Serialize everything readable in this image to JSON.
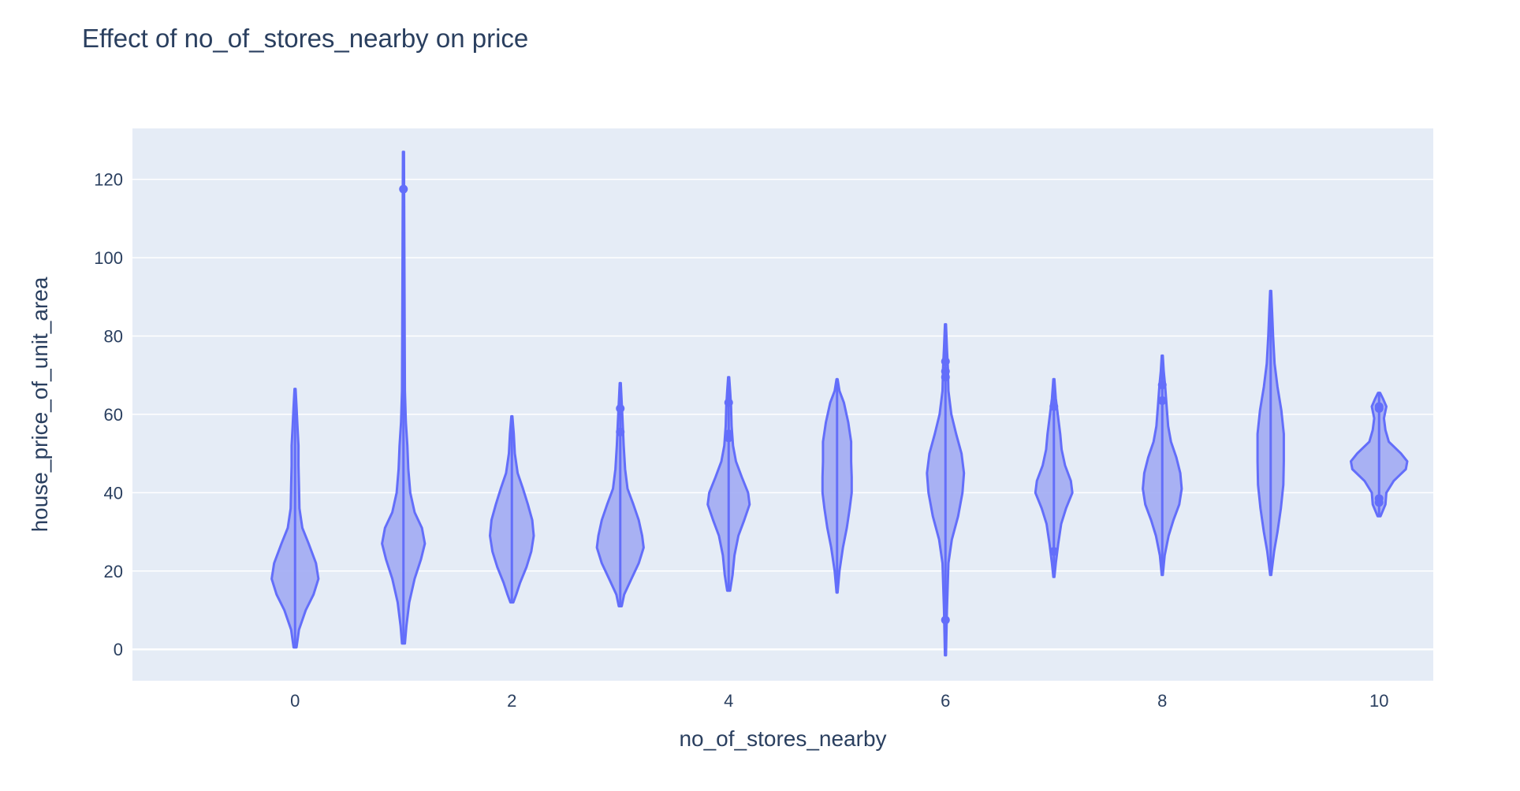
{
  "chart_data": {
    "type": "violin",
    "title": "Effect of no_of_stores_nearby on price",
    "xlabel": "no_of_stores_nearby",
    "ylabel": "house_price_of_unit_area",
    "xlim": [
      -1.5,
      10.5
    ],
    "ylim": [
      -8,
      133
    ],
    "x_ticks": [
      0,
      2,
      4,
      6,
      8,
      10
    ],
    "y_ticks": [
      0,
      20,
      40,
      60,
      80,
      100,
      120
    ],
    "grid": true,
    "colors": {
      "fill": "#a1abf3",
      "line": "#636efa",
      "plot_bg": "#e5ecf6",
      "grid": "#ffffff",
      "text": "#2a3f5f"
    },
    "series": [
      {
        "x": 0,
        "min": 0.5,
        "max": 66.5,
        "outliers": [],
        "profile": [
          [
            0.5,
            0.3
          ],
          [
            5,
            0.8
          ],
          [
            10,
            2.2
          ],
          [
            14,
            3.8
          ],
          [
            18,
            4.8
          ],
          [
            22,
            4.3
          ],
          [
            27,
            2.8
          ],
          [
            31,
            1.5
          ],
          [
            36,
            0.9
          ],
          [
            42,
            0.8
          ],
          [
            47,
            0.7
          ],
          [
            52,
            0.7
          ],
          [
            57,
            0.5
          ],
          [
            62,
            0.3
          ],
          [
            66.5,
            0.1
          ]
        ]
      },
      {
        "x": 1,
        "min": 1.5,
        "max": 127,
        "outliers": [
          117.5
        ],
        "profile": [
          [
            1.5,
            0.3
          ],
          [
            6,
            0.6
          ],
          [
            12,
            1.2
          ],
          [
            18,
            2.3
          ],
          [
            23,
            3.6
          ],
          [
            27,
            4.4
          ],
          [
            31,
            3.8
          ],
          [
            35,
            2.3
          ],
          [
            40,
            1.4
          ],
          [
            46,
            1.0
          ],
          [
            52,
            0.8
          ],
          [
            58,
            0.5
          ],
          [
            66,
            0.3
          ],
          [
            80,
            0.25
          ],
          [
            127,
            0.1
          ]
        ]
      },
      {
        "x": 2,
        "min": 12,
        "max": 59.5,
        "outliers": [],
        "profile": [
          [
            12,
            0.3
          ],
          [
            14,
            0.9
          ],
          [
            17,
            1.7
          ],
          [
            21,
            3.0
          ],
          [
            25,
            4.0
          ],
          [
            29,
            4.5
          ],
          [
            33,
            4.2
          ],
          [
            37,
            3.3
          ],
          [
            41,
            2.3
          ],
          [
            45,
            1.2
          ],
          [
            50,
            0.6
          ],
          [
            55,
            0.4
          ],
          [
            59.5,
            0.1
          ]
        ]
      },
      {
        "x": 3,
        "min": 11,
        "max": 68,
        "outliers": [
          61.5,
          55.5
        ],
        "profile": [
          [
            11,
            0.3
          ],
          [
            14,
            0.8
          ],
          [
            18,
            2.3
          ],
          [
            22,
            3.8
          ],
          [
            26,
            4.8
          ],
          [
            29,
            4.5
          ],
          [
            33,
            3.8
          ],
          [
            37,
            2.7
          ],
          [
            41,
            1.5
          ],
          [
            46,
            1.0
          ],
          [
            52,
            0.7
          ],
          [
            58,
            0.5
          ],
          [
            63,
            0.3
          ],
          [
            68,
            0.1
          ]
        ]
      },
      {
        "x": 4,
        "min": 15,
        "max": 69.5,
        "outliers": [
          63,
          55,
          54
        ],
        "profile": [
          [
            15,
            0.3
          ],
          [
            19,
            0.8
          ],
          [
            24,
            1.2
          ],
          [
            29,
            2.0
          ],
          [
            33,
            3.2
          ],
          [
            37,
            4.3
          ],
          [
            40,
            4.0
          ],
          [
            44,
            2.7
          ],
          [
            48,
            1.5
          ],
          [
            52,
            0.9
          ],
          [
            57,
            0.6
          ],
          [
            62,
            0.5
          ],
          [
            66,
            0.3
          ],
          [
            69.5,
            0.1
          ]
        ]
      },
      {
        "x": 5,
        "min": 14.5,
        "max": 69,
        "outliers": [],
        "profile": [
          [
            14.5,
            0.1
          ],
          [
            20,
            0.5
          ],
          [
            26,
            1.2
          ],
          [
            31,
            2.0
          ],
          [
            36,
            2.6
          ],
          [
            40,
            3.0
          ],
          [
            44,
            3.0
          ],
          [
            48,
            2.9
          ],
          [
            53,
            2.9
          ],
          [
            58,
            2.3
          ],
          [
            63,
            1.4
          ],
          [
            66,
            0.5
          ],
          [
            69,
            0.1
          ]
        ]
      },
      {
        "x": 6,
        "min": -1.5,
        "max": 83,
        "outliers": [
          73.5,
          71,
          69.5,
          7.5
        ],
        "profile": [
          [
            -1.5,
            0.1
          ],
          [
            10,
            0.3
          ],
          [
            22,
            0.6
          ],
          [
            28,
            1.3
          ],
          [
            34,
            2.6
          ],
          [
            40,
            3.5
          ],
          [
            45,
            3.8
          ],
          [
            50,
            3.3
          ],
          [
            55,
            2.2
          ],
          [
            60,
            1.2
          ],
          [
            66,
            0.6
          ],
          [
            72,
            0.5
          ],
          [
            77,
            0.3
          ],
          [
            83,
            0.1
          ]
        ]
      },
      {
        "x": 7,
        "min": 18.5,
        "max": 69,
        "outliers": [
          62,
          25
        ],
        "profile": [
          [
            18.5,
            0.1
          ],
          [
            22,
            0.4
          ],
          [
            27,
            0.9
          ],
          [
            32,
            1.5
          ],
          [
            36,
            2.5
          ],
          [
            40,
            3.8
          ],
          [
            43,
            3.5
          ],
          [
            47,
            2.3
          ],
          [
            51,
            1.6
          ],
          [
            55,
            1.3
          ],
          [
            60,
            0.8
          ],
          [
            64,
            0.4
          ],
          [
            69,
            0.1
          ]
        ]
      },
      {
        "x": 8,
        "min": 19,
        "max": 75,
        "outliers": [
          67.5,
          63.5
        ],
        "profile": [
          [
            19,
            0.1
          ],
          [
            24,
            0.5
          ],
          [
            29,
            1.3
          ],
          [
            33,
            2.3
          ],
          [
            37,
            3.5
          ],
          [
            41,
            4.0
          ],
          [
            45,
            3.7
          ],
          [
            49,
            2.9
          ],
          [
            53,
            1.8
          ],
          [
            57,
            1.2
          ],
          [
            62,
            0.9
          ],
          [
            67,
            0.6
          ],
          [
            71,
            0.3
          ],
          [
            75,
            0.1
          ]
        ]
      },
      {
        "x": 9,
        "min": 19,
        "max": 91.5,
        "outliers": [],
        "profile": [
          [
            19,
            0.1
          ],
          [
            25,
            0.7
          ],
          [
            30,
            1.4
          ],
          [
            36,
            2.1
          ],
          [
            42,
            2.6
          ],
          [
            48,
            2.7
          ],
          [
            55,
            2.7
          ],
          [
            61,
            2.2
          ],
          [
            67,
            1.4
          ],
          [
            73,
            0.8
          ],
          [
            80,
            0.5
          ],
          [
            86,
            0.3
          ],
          [
            91.5,
            0.1
          ]
        ]
      },
      {
        "x": 10,
        "min": 34,
        "max": 65.5,
        "outliers": [
          62,
          61.5,
          38.5,
          37.5
        ],
        "profile": [
          [
            34,
            0.3
          ],
          [
            37,
            1.3
          ],
          [
            40,
            1.5
          ],
          [
            43,
            3.0
          ],
          [
            46,
            5.5
          ],
          [
            48,
            5.8
          ],
          [
            50,
            4.5
          ],
          [
            53,
            2.0
          ],
          [
            56,
            1.3
          ],
          [
            59,
            1.0
          ],
          [
            62,
            1.5
          ],
          [
            64,
            0.8
          ],
          [
            65.5,
            0.2
          ]
        ]
      }
    ]
  }
}
